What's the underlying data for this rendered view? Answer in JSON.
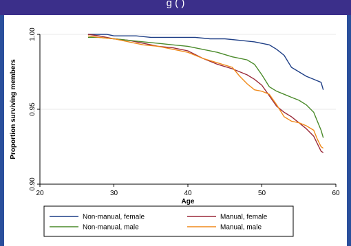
{
  "header": {
    "title_fragment": "g                        (                )"
  },
  "chart_data": {
    "type": "line",
    "title": "",
    "xlabel": "Age",
    "ylabel": "Proportion surviving members",
    "xlim": [
      20,
      60
    ],
    "ylim": [
      0.9,
      1.0
    ],
    "xticks": [
      20,
      30,
      40,
      50,
      60
    ],
    "yticks": [
      0.9,
      0.95,
      1.0
    ],
    "xtick_labels": [
      "20",
      "30",
      "40",
      "50",
      "60"
    ],
    "ytick_labels": [
      "0.90",
      "0.95",
      "1.00"
    ],
    "grid": true,
    "legend_position": "bottom",
    "series": [
      {
        "name": "Non-manual, female",
        "color": "#1f3f86",
        "x": [
          26.5,
          29.0,
          30.0,
          31.5,
          33.0,
          35.0,
          37.0,
          39.0,
          41.0,
          43.0,
          45.0,
          47.0,
          49.0,
          51.0,
          52.0,
          53.0,
          54.0,
          55.0,
          56.0,
          57.0,
          58.0,
          58.3
        ],
        "y": [
          1.0,
          1.0,
          0.999,
          0.999,
          0.999,
          0.998,
          0.998,
          0.998,
          0.998,
          0.997,
          0.997,
          0.996,
          0.995,
          0.993,
          0.99,
          0.986,
          0.978,
          0.975,
          0.972,
          0.97,
          0.968,
          0.963
        ]
      },
      {
        "name": "Manual, female",
        "color": "#9a2a3a",
        "x": [
          26.5,
          28.0,
          30.0,
          32.0,
          34.0,
          36.0,
          38.0,
          40.0,
          42.0,
          44.0,
          46.0,
          48.0,
          49.0,
          50.0,
          51.0,
          52.0,
          53.0,
          54.0,
          55.0,
          56.0,
          57.0,
          57.5,
          58.0,
          58.3
        ],
        "y": [
          1.0,
          0.999,
          0.997,
          0.996,
          0.994,
          0.992,
          0.991,
          0.989,
          0.984,
          0.98,
          0.977,
          0.973,
          0.97,
          0.966,
          0.959,
          0.952,
          0.948,
          0.945,
          0.941,
          0.937,
          0.932,
          0.927,
          0.922,
          0.921
        ]
      },
      {
        "name": "Non-manual, male",
        "color": "#4a8a2a",
        "x": [
          26.5,
          28.0,
          30.0,
          32.0,
          34.0,
          36.0,
          38.0,
          40.0,
          42.0,
          44.0,
          46.0,
          48.0,
          49.0,
          50.0,
          51.0,
          52.0,
          53.0,
          54.0,
          55.0,
          56.0,
          57.0,
          57.5,
          58.0,
          58.3
        ],
        "y": [
          0.998,
          0.998,
          0.997,
          0.996,
          0.995,
          0.994,
          0.993,
          0.992,
          0.99,
          0.988,
          0.985,
          0.983,
          0.98,
          0.973,
          0.965,
          0.962,
          0.96,
          0.958,
          0.956,
          0.953,
          0.948,
          0.942,
          0.936,
          0.931
        ]
      },
      {
        "name": "Manual, male",
        "color": "#f08a1a",
        "x": [
          26.5,
          28.0,
          30.0,
          32.0,
          34.0,
          36.0,
          38.0,
          40.0,
          42.0,
          44.0,
          46.0,
          47.0,
          48.0,
          49.0,
          50.0,
          51.0,
          52.0,
          53.0,
          54.0,
          55.0,
          56.0,
          57.0,
          57.5,
          58.0,
          58.3
        ],
        "y": [
          0.999,
          0.998,
          0.997,
          0.995,
          0.993,
          0.992,
          0.99,
          0.988,
          0.984,
          0.981,
          0.978,
          0.972,
          0.967,
          0.963,
          0.962,
          0.96,
          0.953,
          0.945,
          0.942,
          0.941,
          0.939,
          0.936,
          0.93,
          0.925,
          0.924
        ]
      }
    ]
  }
}
